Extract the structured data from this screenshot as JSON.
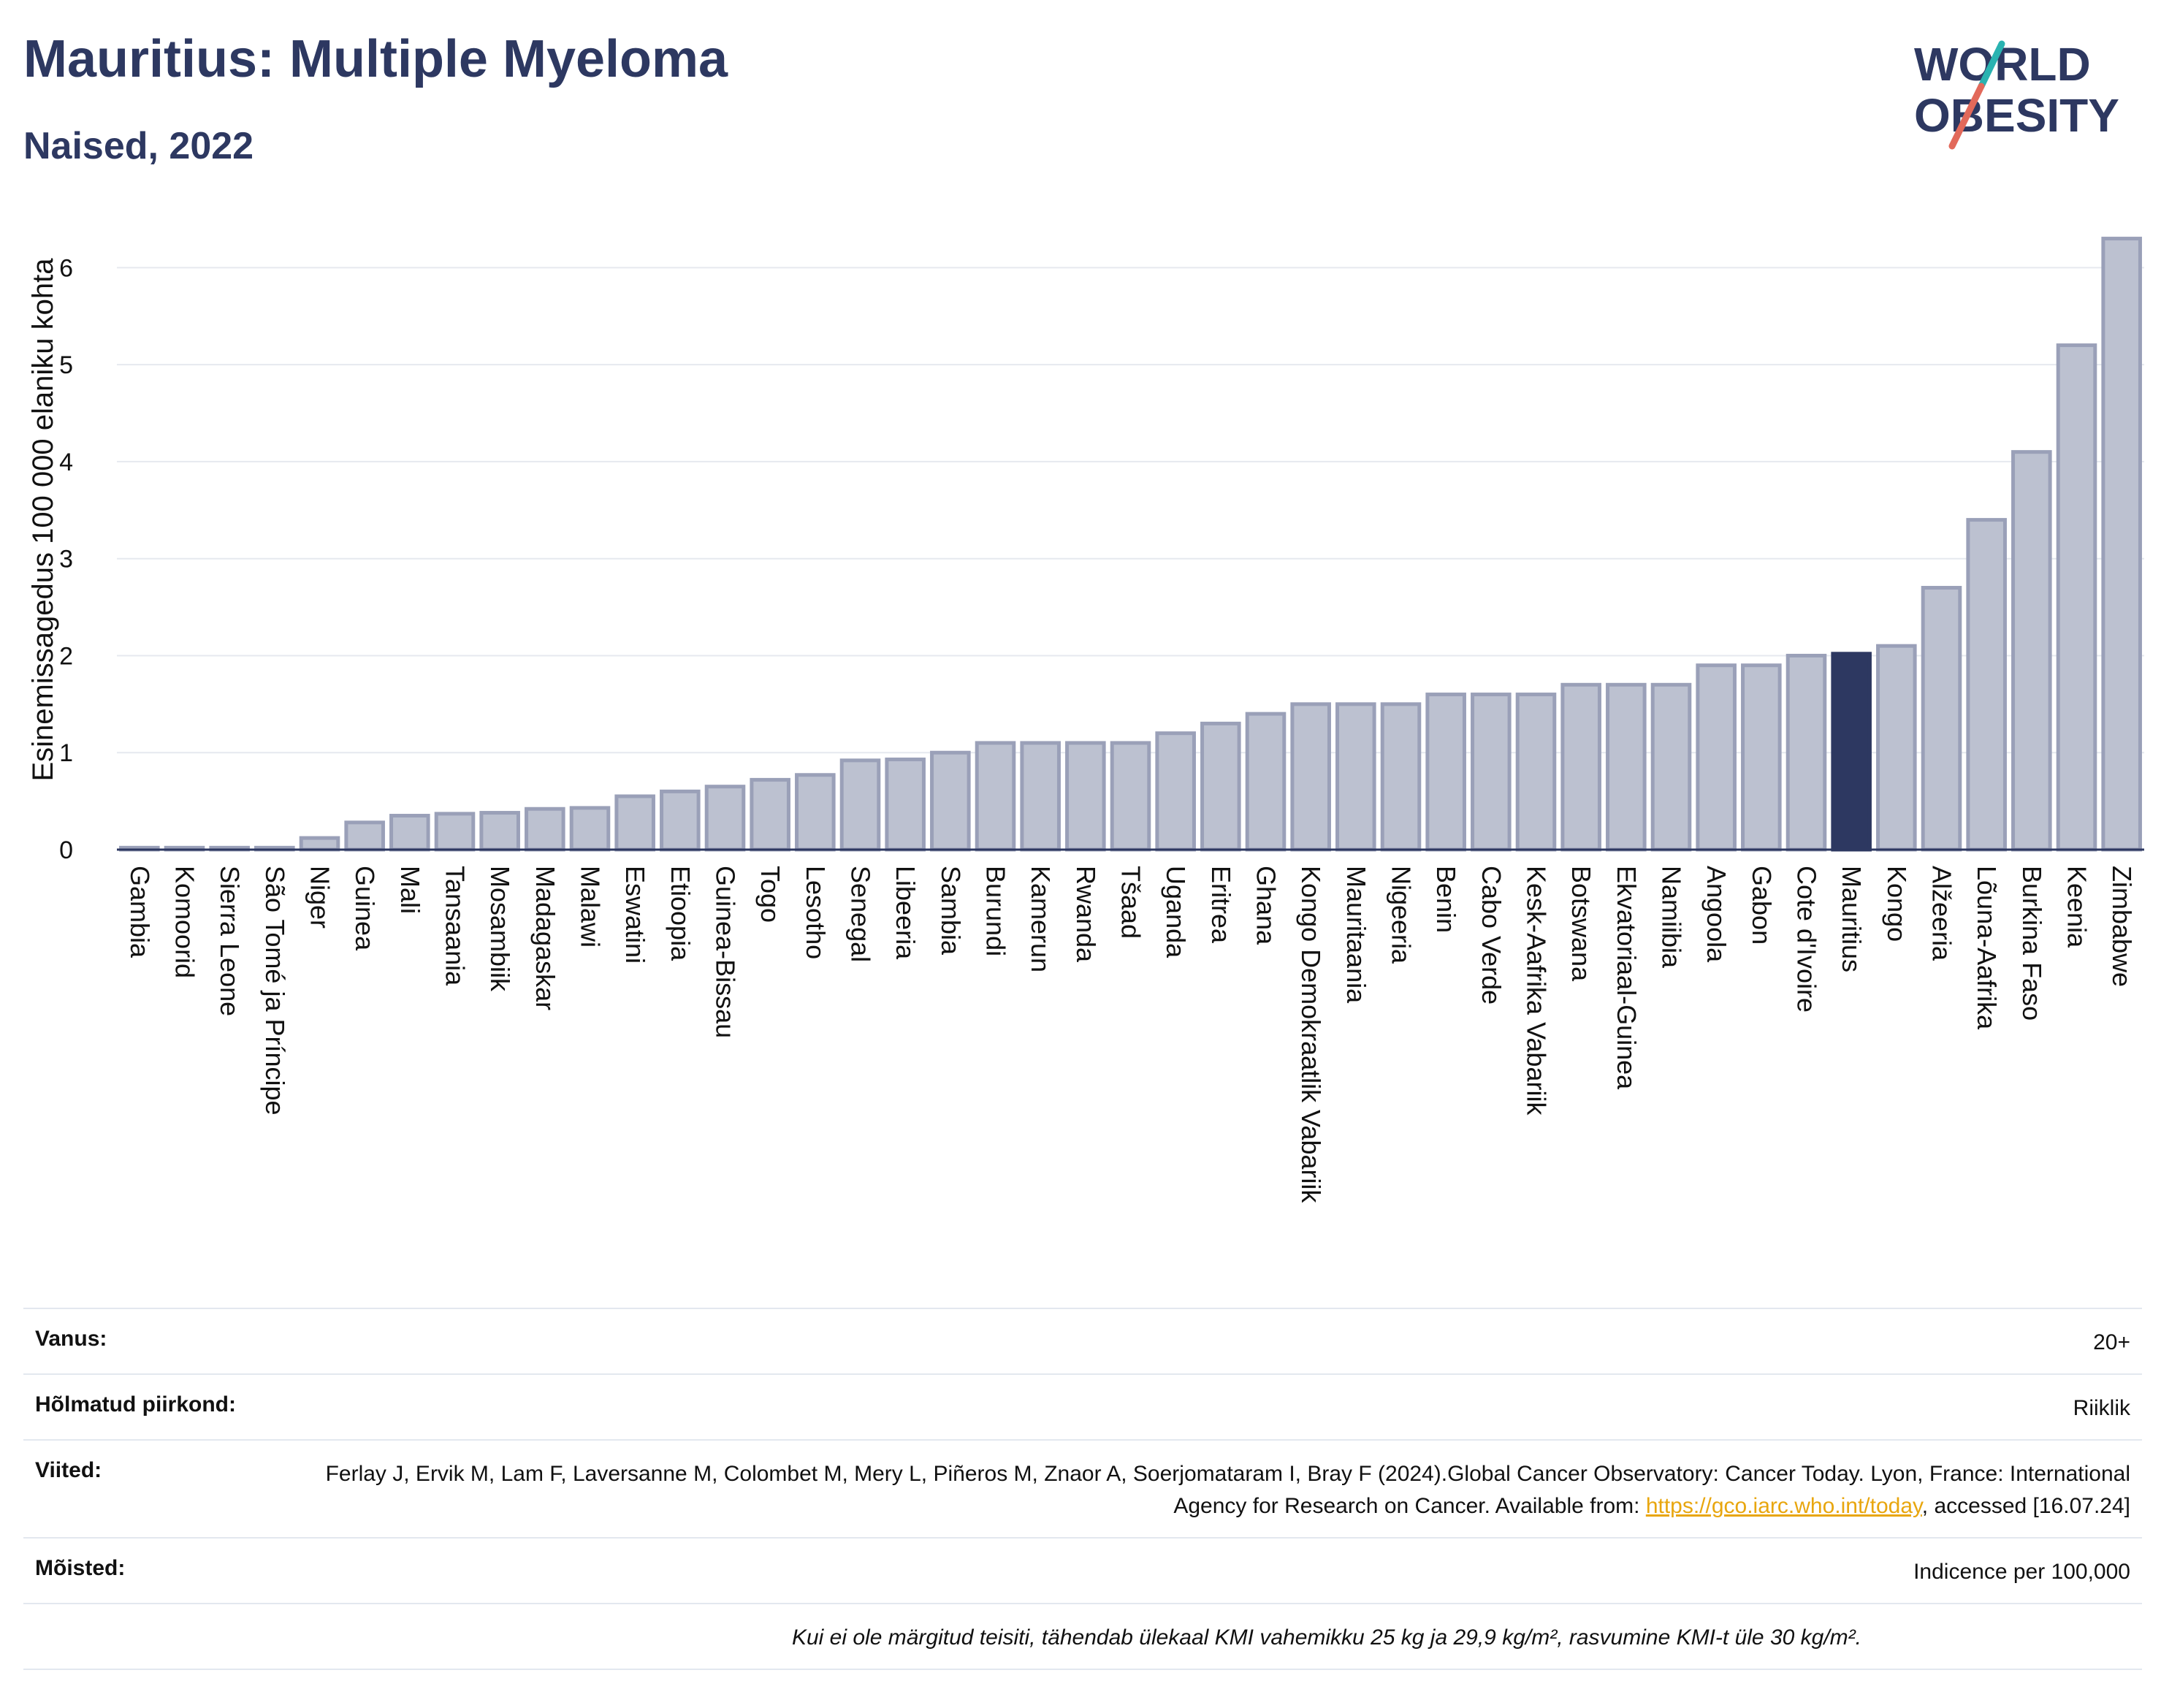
{
  "header": {
    "title": "Mauritius: Multiple Myeloma",
    "subtitle": "Naised, 2022"
  },
  "logo": {
    "line1": "WORLD",
    "line2": "OBESITY",
    "accent_colors": [
      "#2ab3b1",
      "#e2695a"
    ]
  },
  "chart_data": {
    "type": "bar",
    "title": "",
    "xlabel": "",
    "ylabel": "Esinemissagedus 100 000 elaniku kohta",
    "ylim": [
      0,
      6.5
    ],
    "yticks": [
      0,
      1,
      2,
      3,
      4,
      5,
      6
    ],
    "grid": true,
    "highlight": "Mauritius",
    "colors": {
      "bar": "#bcc1d0",
      "bar_border": "#9aa0b8",
      "highlight": "#2d3861",
      "axis": "#2d3861",
      "grid": "#e6e9ef"
    },
    "categories": [
      "Gambia",
      "Komoorid",
      "Sierra Leone",
      "São Tomé ja Príncipe",
      "Niger",
      "Guinea",
      "Mali",
      "Tansaania",
      "Mosambiik",
      "Madagaskar",
      "Malawi",
      "Eswatini",
      "Etioopia",
      "Guinea-Bissau",
      "Togo",
      "Lesotho",
      "Senegal",
      "Libeeria",
      "Sambia",
      "Burundi",
      "Kamerun",
      "Rwanda",
      "Tšaad",
      "Uganda",
      "Eritrea",
      "Ghana",
      "Kongo Demokraatlik Vabariik",
      "Mauritaania",
      "Nigeeria",
      "Benin",
      "Cabo Verde",
      "Kesk-Aafrika Vabariik",
      "Botswana",
      "Ekvatoriaal-Guinea",
      "Namiibia",
      "Angoola",
      "Gabon",
      "Cote d'Ivoire",
      "Mauritius",
      "Kongo",
      "Alžeeria",
      "Lõuna-Aafrika",
      "Burkina Faso",
      "Keenia",
      "Zimbabwe"
    ],
    "values": [
      0.02,
      0.02,
      0.02,
      0.02,
      0.12,
      0.28,
      0.35,
      0.37,
      0.38,
      0.42,
      0.43,
      0.55,
      0.6,
      0.65,
      0.72,
      0.77,
      0.92,
      0.93,
      1.0,
      1.1,
      1.1,
      1.1,
      1.1,
      1.2,
      1.3,
      1.4,
      1.5,
      1.5,
      1.5,
      1.6,
      1.6,
      1.6,
      1.7,
      1.7,
      1.7,
      1.9,
      1.9,
      2.0,
      2.02,
      2.1,
      2.7,
      3.4,
      4.1,
      5.2,
      6.3
    ]
  },
  "meta": {
    "age_label": "Vanus:",
    "age_value": "20+",
    "region_label": "Hõlmatud piirkond:",
    "region_value": "Riiklik",
    "refs_label": "Viited:",
    "refs_text_1": "Ferlay J, Ervik M, Lam F, Laversanne M, Colombet M, Mery L, Piñeros M, Znaor A, Soerjomataram I, Bray F (2024).Global Cancer Observatory: Cancer Today. Lyon, France: International Agency for Research on Cancer. Available from: ",
    "refs_link": "https://gco.iarc.who.int/today",
    "refs_text_2": ", accessed [16.07.24]",
    "definitions_label": "Mõisted:",
    "definitions_value": "Indicence per 100,000",
    "note": "Kui ei ole märgitud teisiti, tähendab ülekaal KMI vahemikku 25 kg ja 29,9 kg/m², rasvumine KMI-t üle 30 kg/m²."
  }
}
